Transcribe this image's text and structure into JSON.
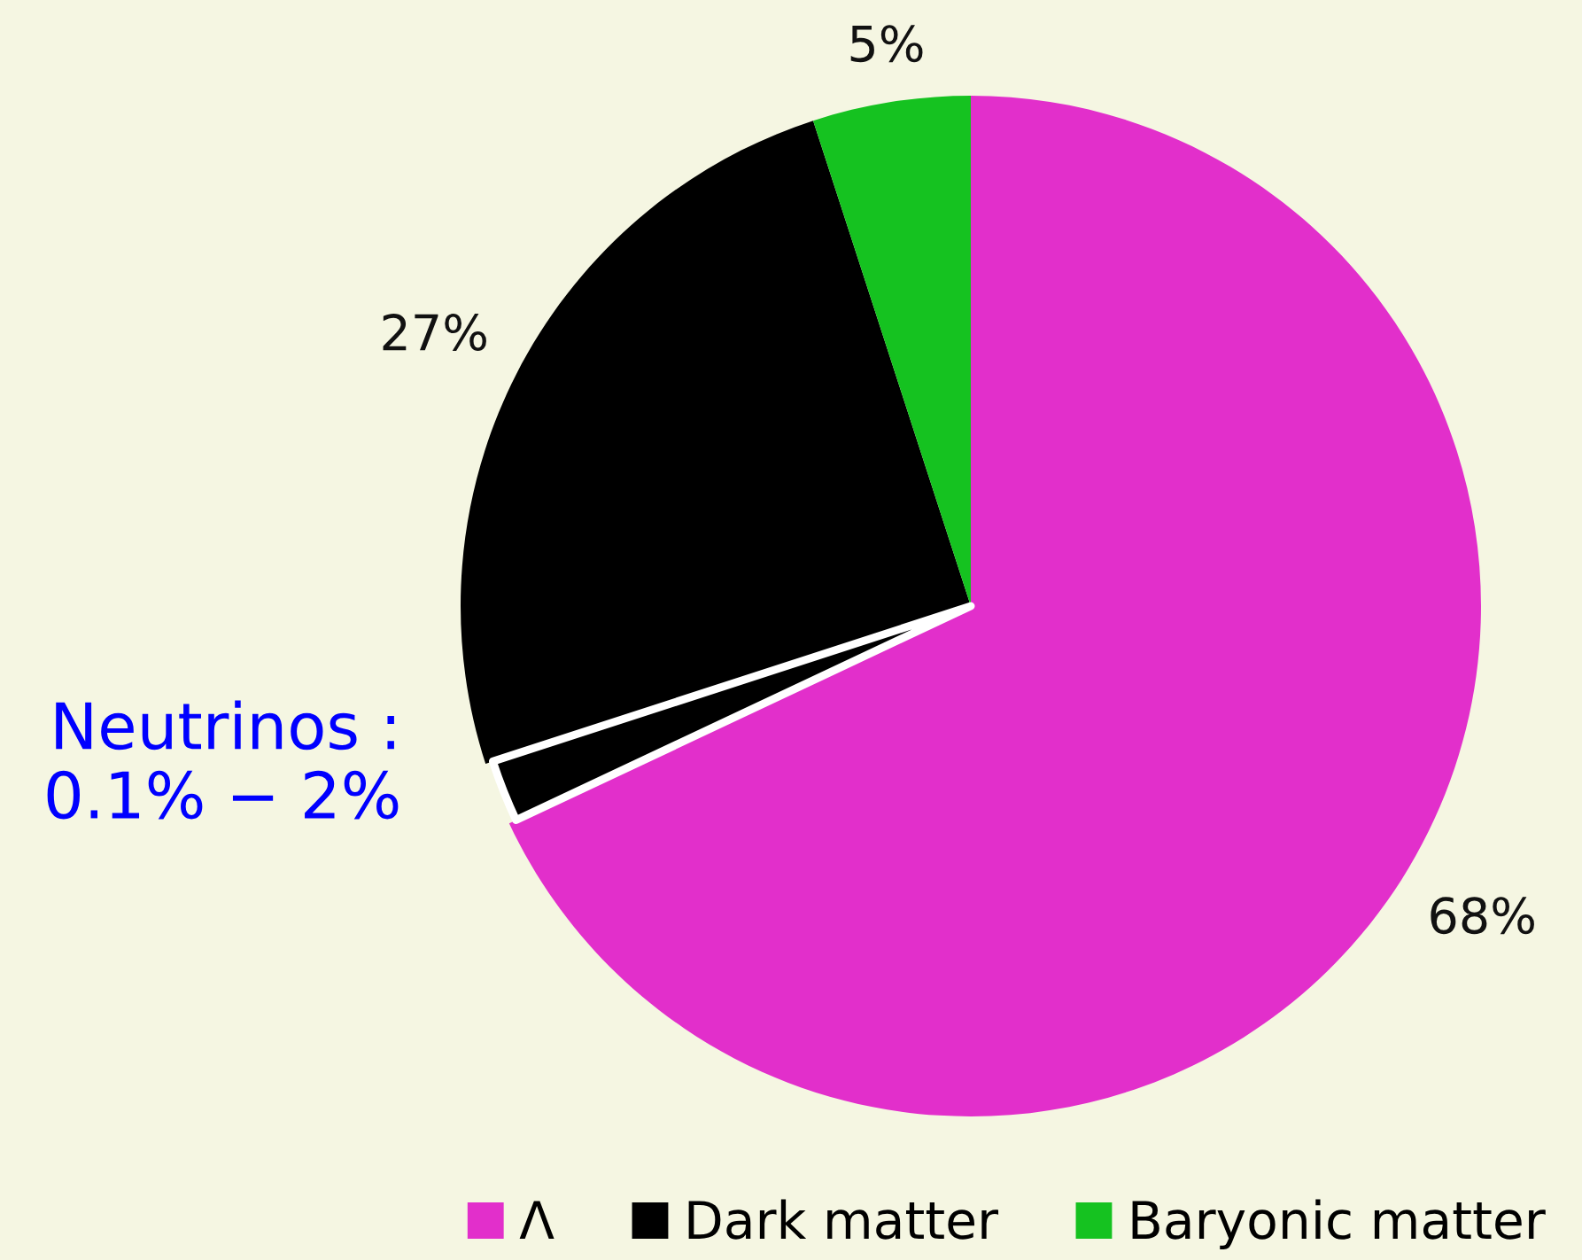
{
  "chart_data": {
    "type": "pie",
    "categories": [
      "Λ",
      null,
      "Dark matter",
      "Baryonic matter"
    ],
    "values": [
      68,
      2,
      25,
      5
    ],
    "colors": [
      "#e22fcb",
      "#000000",
      "#000000",
      "#15c220"
    ],
    "value_labels": [
      "68%",
      null,
      null,
      "5%"
    ],
    "annotations": [
      {
        "text": "27%",
        "x": "Dark matter"
      },
      {
        "text": "Neutrinos :\n0.1% − 2%"
      }
    ],
    "legend": "bottom right"
  }
}
